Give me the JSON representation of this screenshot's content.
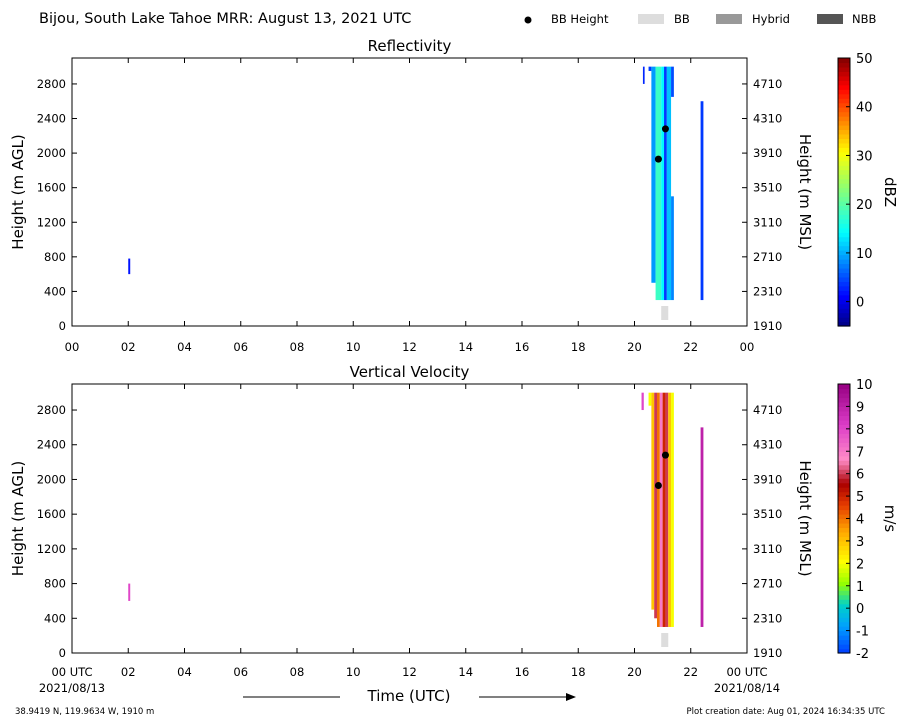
{
  "header": {
    "title": "Bijou, South Lake Tahoe MRR:  August 13, 2021 UTC",
    "legend": [
      {
        "label": "BB Height",
        "symbol": "dot",
        "color": "#000000"
      },
      {
        "label": "BB",
        "symbol": "box",
        "color": "#dddddd"
      },
      {
        "label": "Hybrid",
        "symbol": "box",
        "color": "#999999"
      },
      {
        "label": "NBB",
        "symbol": "box",
        "color": "#555555"
      }
    ]
  },
  "footer": {
    "coords": "38.9419 N, 119.9634 W, 1910 m",
    "creation": "Plot creation date: Aug 01, 2024 16:34:35 UTC",
    "start_date": "2021/08/13",
    "end_date": "2021/08/14",
    "xlabel": "Time (UTC)"
  },
  "chart_data": [
    {
      "type": "heatmap",
      "title": "Reflectivity",
      "ylabel": "Height (m AGL)",
      "y2label": "Height (m MSL)",
      "x_ticks": [
        "00",
        "02",
        "04",
        "06",
        "08",
        "10",
        "12",
        "14",
        "16",
        "18",
        "20",
        "22",
        "00"
      ],
      "y_ticks": [
        0,
        400,
        800,
        1200,
        1600,
        2000,
        2400,
        2800
      ],
      "y2_ticks": [
        1910,
        2310,
        2710,
        3110,
        3510,
        3910,
        4310,
        4710
      ],
      "xlim": [
        0,
        24
      ],
      "ylim": [
        0,
        3100
      ],
      "colorbar": {
        "label": "dBZ",
        "min": -5,
        "max": 50,
        "ticks": [
          0,
          10,
          20,
          30,
          40,
          50
        ],
        "colormap": "jet"
      },
      "bb_height_points": [
        {
          "x": 20.85,
          "y": 1930
        },
        {
          "x": 21.1,
          "y": 2280
        }
      ],
      "bb_flag": [
        {
          "x_start": 20.95,
          "x_end": 21.2,
          "category": "BB"
        }
      ],
      "echo_columns": [
        {
          "x_start": 2.0,
          "x_end": 2.07,
          "y_bottom": 600,
          "y_top": 780,
          "dbz": 2
        },
        {
          "x_start": 20.3,
          "x_end": 20.36,
          "y_bottom": 2800,
          "y_top": 3000,
          "dbz": 3
        },
        {
          "x_start": 20.5,
          "x_end": 20.6,
          "y_bottom": 2950,
          "y_top": 3000,
          "dbz": 4
        },
        {
          "x_start": 20.6,
          "x_end": 20.75,
          "y_bottom": 500,
          "y_top": 3000,
          "dbz": 9
        },
        {
          "x_start": 20.75,
          "x_end": 20.95,
          "y_bottom": 300,
          "y_top": 3000,
          "dbz": 18
        },
        {
          "x_start": 20.95,
          "x_end": 21.05,
          "y_bottom": 300,
          "y_top": 3000,
          "dbz": 14
        },
        {
          "x_start": 21.05,
          "x_end": 21.15,
          "y_bottom": 300,
          "y_top": 3000,
          "dbz": 4
        },
        {
          "x_start": 21.15,
          "x_end": 21.3,
          "y_bottom": 300,
          "y_top": 3000,
          "dbz": 11
        },
        {
          "x_start": 21.3,
          "x_end": 21.4,
          "y_bottom": 300,
          "y_top": 1500,
          "dbz": 8
        },
        {
          "x_start": 21.3,
          "x_end": 21.4,
          "y_bottom": 2650,
          "y_top": 3000,
          "dbz": 5
        },
        {
          "x_start": 22.35,
          "x_end": 22.45,
          "y_bottom": 300,
          "y_top": 2600,
          "dbz": 4
        }
      ]
    },
    {
      "type": "heatmap",
      "title": "Vertical Velocity",
      "ylabel": "Height (m AGL)",
      "y2label": "Height (m MSL)",
      "x_ticks": [
        "00 UTC",
        "02",
        "04",
        "06",
        "08",
        "10",
        "12",
        "14",
        "16",
        "18",
        "20",
        "22",
        "00 UTC"
      ],
      "y_ticks": [
        0,
        400,
        800,
        1200,
        1600,
        2000,
        2400,
        2800
      ],
      "y2_ticks": [
        1910,
        2310,
        2710,
        3110,
        3510,
        3910,
        4310,
        4710
      ],
      "xlim": [
        0,
        24
      ],
      "ylim": [
        0,
        3100
      ],
      "colorbar": {
        "label": "m/s",
        "min": -2,
        "max": 10,
        "ticks": [
          -2,
          -1,
          0,
          1,
          2,
          3,
          4,
          5,
          6,
          7,
          8,
          9,
          10
        ],
        "colormap": "velocity"
      },
      "bb_height_points": [
        {
          "x": 20.85,
          "y": 1930
        },
        {
          "x": 21.1,
          "y": 2280
        }
      ],
      "bb_flag": [
        {
          "x_start": 20.95,
          "x_end": 21.2,
          "category": "BB"
        }
      ],
      "echo_columns": [
        {
          "x_start": 2.0,
          "x_end": 2.07,
          "y_bottom": 600,
          "y_top": 800,
          "ms": 8
        },
        {
          "x_start": 20.25,
          "x_end": 20.33,
          "y_bottom": 2800,
          "y_top": 3000,
          "ms": 8
        },
        {
          "x_start": 20.5,
          "x_end": 20.6,
          "y_bottom": 2850,
          "y_top": 3000,
          "ms": 2
        },
        {
          "x_start": 20.6,
          "x_end": 20.7,
          "y_bottom": 500,
          "y_top": 3000,
          "ms": 3
        },
        {
          "x_start": 20.7,
          "x_end": 20.8,
          "y_bottom": 400,
          "y_top": 3000,
          "ms": 6
        },
        {
          "x_start": 20.8,
          "x_end": 20.9,
          "y_bottom": 300,
          "y_top": 3000,
          "ms": 4
        },
        {
          "x_start": 20.9,
          "x_end": 21.0,
          "y_bottom": 300,
          "y_top": 3000,
          "ms": 7
        },
        {
          "x_start": 21.0,
          "x_end": 21.1,
          "y_bottom": 300,
          "y_top": 3000,
          "ms": 5
        },
        {
          "x_start": 21.1,
          "x_end": 21.2,
          "y_bottom": 300,
          "y_top": 3000,
          "ms": 6
        },
        {
          "x_start": 21.2,
          "x_end": 21.3,
          "y_bottom": 300,
          "y_top": 3000,
          "ms": 3
        },
        {
          "x_start": 21.3,
          "x_end": 21.4,
          "y_bottom": 300,
          "y_top": 3000,
          "ms": 2
        },
        {
          "x_start": 22.35,
          "x_end": 22.45,
          "y_bottom": 300,
          "y_top": 2600,
          "ms": 9
        }
      ]
    }
  ]
}
